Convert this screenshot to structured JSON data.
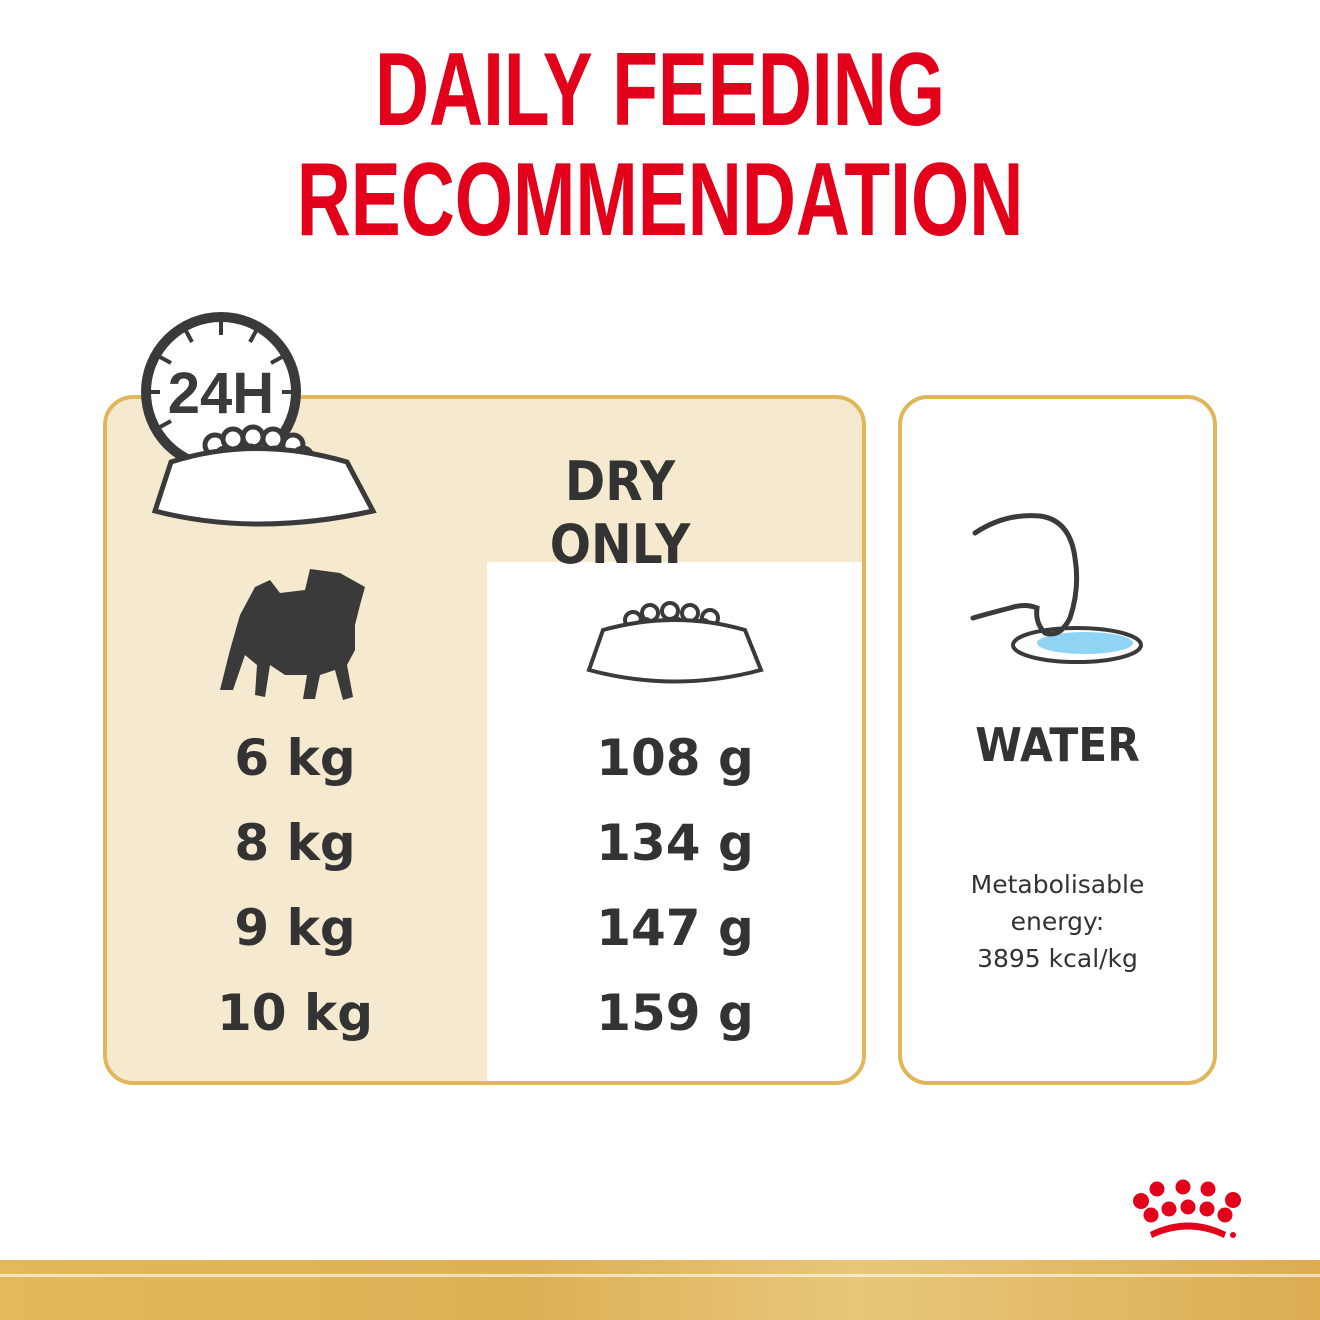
{
  "title": {
    "line1": "DAILY FEEDING",
    "line2": "RECOMMENDATION"
  },
  "clock_label": "24H",
  "column_header": "DRY ONLY",
  "rows": [
    {
      "weight": "6 kg",
      "amount": "108 g"
    },
    {
      "weight": "8 kg",
      "amount": "134 g"
    },
    {
      "weight": "9 kg",
      "amount": "147 g"
    },
    {
      "weight": "10 kg",
      "amount": "159 g"
    }
  ],
  "water": {
    "label": "WATER",
    "energy_line1": "Metabolisable",
    "energy_line2": "energy:",
    "energy_line3": "3895 kcal/kg"
  },
  "colors": {
    "brand_red": "#e2001a",
    "gold": "#dfb65a",
    "cream": "#f5e9cf",
    "text": "#333333",
    "water_blue": "#8fd3f5"
  },
  "logo": "Royal Canin crown"
}
